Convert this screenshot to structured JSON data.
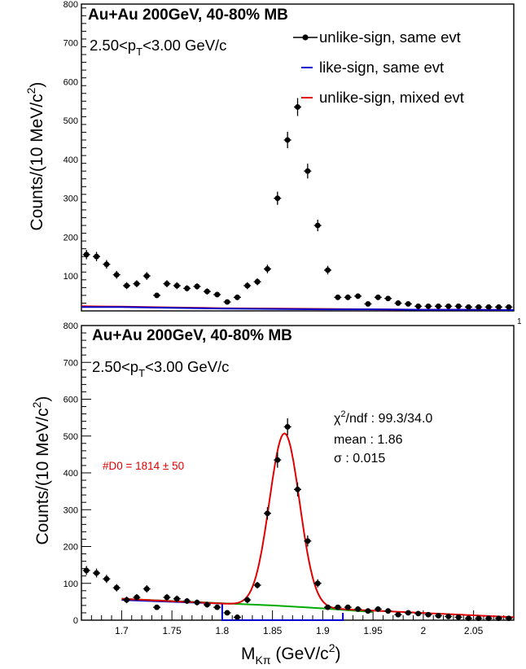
{
  "chart_data": [
    {
      "type": "scatter",
      "title": "Au+Au 200GeV, 40-80% MB",
      "subtitle_main": "2.50<p",
      "subtitle_sub": "T",
      "subtitle_tail": "<3.00 GeV/c",
      "ylabel": "Counts/(10 MeV/c",
      "ylabel_sup": "2",
      "ylabel_tail": ")",
      "xlim": [
        1.66,
        2.09
      ],
      "ylim": [
        10,
        800
      ],
      "y_ticks": [
        100,
        200,
        300,
        400,
        500,
        600,
        700,
        800
      ],
      "x_corner_label": "1",
      "legend": [
        {
          "label": "unlike-sign, same evt",
          "color": "#000000",
          "marker": "point"
        },
        {
          "label": "like-sign, same evt",
          "color": "#0000cc",
          "marker": "line"
        },
        {
          "label": "unlike-sign, mixed evt",
          "color": "#e00000",
          "marker": "line"
        }
      ],
      "series": [
        {
          "name": "unlike-sign, same evt",
          "color": "#000000",
          "x": [
            1.665,
            1.675,
            1.685,
            1.695,
            1.705,
            1.715,
            1.725,
            1.735,
            1.745,
            1.755,
            1.765,
            1.775,
            1.785,
            1.795,
            1.805,
            1.815,
            1.825,
            1.835,
            1.845,
            1.855,
            1.865,
            1.875,
            1.885,
            1.895,
            1.905,
            1.915,
            1.925,
            1.935,
            1.945,
            1.955,
            1.965,
            1.975,
            1.985,
            1.995,
            2.005,
            2.015,
            2.025,
            2.035,
            2.045,
            2.055,
            2.065,
            2.075,
            2.085
          ],
          "y": [
            155,
            150,
            130,
            103,
            75,
            80,
            100,
            50,
            80,
            75,
            68,
            73,
            60,
            52,
            33,
            45,
            75,
            85,
            118,
            300,
            450,
            535,
            370,
            230,
            115,
            45,
            45,
            48,
            28,
            45,
            42,
            30,
            28,
            22,
            22,
            22,
            22,
            22,
            20,
            20,
            20,
            20,
            20
          ],
          "yerr": [
            12,
            12,
            11,
            10,
            9,
            9,
            10,
            7,
            9,
            9,
            8,
            8,
            8,
            7,
            6,
            7,
            9,
            9,
            11,
            17,
            21,
            23,
            19,
            15,
            11,
            7,
            7,
            7,
            5,
            7,
            6,
            5,
            5,
            5,
            5,
            5,
            5,
            5,
            4,
            4,
            4,
            4,
            4
          ]
        },
        {
          "name": "like-sign, same evt",
          "color": "#0000cc",
          "x": [
            1.66,
            1.7,
            1.75,
            1.8,
            1.85,
            1.9,
            1.95,
            2.0,
            2.05,
            2.09
          ],
          "y": [
            20,
            20,
            18,
            16,
            15,
            14,
            14,
            13,
            13,
            12
          ]
        },
        {
          "name": "unlike-sign, mixed evt",
          "color": "#e00000",
          "x": [
            1.66,
            1.7,
            1.75,
            1.8,
            1.85,
            1.9,
            1.95,
            2.0,
            2.05,
            2.09
          ],
          "y": [
            22,
            21,
            19,
            17,
            16,
            15,
            14,
            13,
            13,
            12
          ]
        }
      ]
    },
    {
      "type": "scatter",
      "title": "Au+Au 200GeV, 40-80% MB",
      "subtitle_main": "2.50<p",
      "subtitle_sub": "T",
      "subtitle_tail": "<3.00 GeV/c",
      "ylabel": "Counts/(10 MeV/c",
      "ylabel_sup": "2",
      "ylabel_tail": ")",
      "xlabel_main": "M",
      "xlabel_sub": "Kπ",
      "xlabel_tail": " (GeV/c",
      "xlabel_sup": "2",
      "xlabel_close": ")",
      "xlim": [
        1.66,
        2.09
      ],
      "ylim": [
        0,
        800
      ],
      "x_ticks": [
        1.7,
        1.75,
        1.8,
        1.85,
        1.9,
        1.95,
        2,
        2.05
      ],
      "x_tick_labels": [
        "1.7",
        "1.75",
        "1.8",
        "1.85",
        "1.9",
        "1.95",
        "2",
        "2.05"
      ],
      "y_ticks": [
        0,
        100,
        200,
        300,
        400,
        500,
        600,
        700,
        800
      ],
      "fit_stats": {
        "chi2_main": "χ",
        "chi2_sup": "2",
        "chi2_rest": "/ndf : 99.3/34.0",
        "mean": "mean  : 1.86",
        "sigma": "σ        : 0.015"
      },
      "yield_text": "#D0 = 1814 ± 50",
      "series": [
        {
          "name": "data",
          "color": "#000000",
          "x": [
            1.665,
            1.675,
            1.685,
            1.695,
            1.705,
            1.715,
            1.725,
            1.735,
            1.745,
            1.755,
            1.765,
            1.775,
            1.785,
            1.795,
            1.805,
            1.815,
            1.825,
            1.835,
            1.845,
            1.855,
            1.865,
            1.875,
            1.885,
            1.895,
            1.905,
            1.915,
            1.925,
            1.935,
            1.945,
            1.955,
            1.965,
            1.975,
            1.985,
            1.995,
            2.005,
            2.015,
            2.025,
            2.035,
            2.045,
            2.055,
            2.065,
            2.075,
            2.085
          ],
          "y": [
            135,
            128,
            112,
            88,
            55,
            62,
            85,
            35,
            62,
            58,
            52,
            48,
            42,
            35,
            20,
            8,
            55,
            95,
            290,
            435,
            525,
            355,
            215,
            100,
            35,
            35,
            35,
            30,
            25,
            30,
            25,
            15,
            20,
            18,
            15,
            12,
            10,
            8,
            5,
            5,
            5,
            5,
            5
          ],
          "yerr": [
            12,
            12,
            11,
            10,
            9,
            9,
            10,
            7,
            9,
            9,
            8,
            8,
            8,
            7,
            6,
            7,
            9,
            9,
            17,
            21,
            23,
            19,
            15,
            11,
            7,
            7,
            7,
            6,
            5,
            6,
            5,
            5,
            5,
            5,
            5,
            5,
            5,
            5,
            4,
            4,
            4,
            4,
            4
          ]
        },
        {
          "name": "fit",
          "color": "#e00000",
          "peak_mean": 1.862,
          "peak_sigma": 0.015,
          "peak_amplitude": 470,
          "background": [
            [
              1.7,
              58
            ],
            [
              2.09,
              8
            ]
          ],
          "x_range": [
            1.7,
            2.09
          ]
        },
        {
          "name": "background",
          "color": "#00aa00",
          "x": [
            1.7,
            1.8,
            1.85,
            1.9,
            1.95
          ],
          "y": [
            58,
            46,
            40,
            32,
            22
          ]
        },
        {
          "name": "like-sign",
          "color": "#0000cc",
          "x": [
            1.7,
            1.8,
            1.8,
            1.92,
            1.92
          ],
          "y": [
            55,
            45,
            0,
            0,
            20
          ]
        }
      ]
    }
  ]
}
